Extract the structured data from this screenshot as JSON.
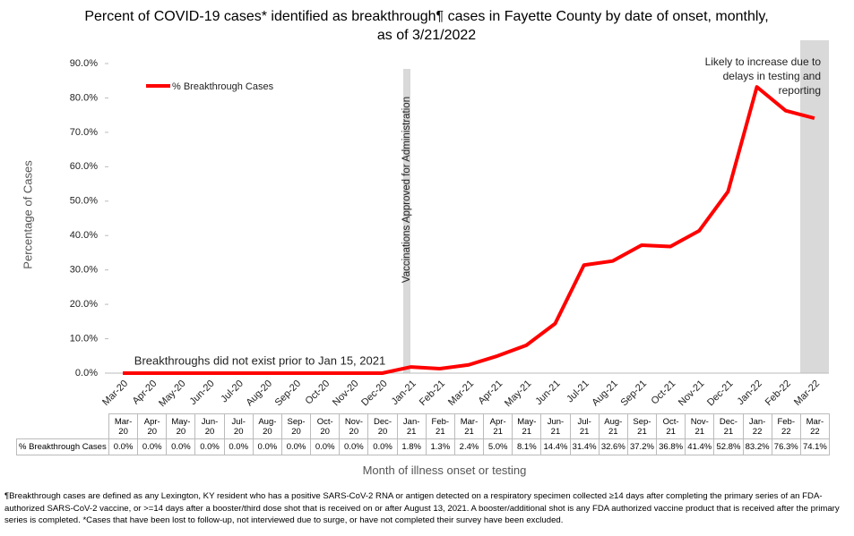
{
  "chart_data": {
    "type": "line",
    "title": "Percent of COVID-19 cases* identified as breakthrough¶ cases in Fayette County by date of onset, monthly, as of 3/21/2022",
    "categories": [
      "Mar-20",
      "Apr-20",
      "May-20",
      "Jun-20",
      "Jul-20",
      "Aug-20",
      "Sep-20",
      "Oct-20",
      "Nov-20",
      "Dec-20",
      "Jan-21",
      "Feb-21",
      "Mar-21",
      "Apr-21",
      "May-21",
      "Jun-21",
      "Jul-21",
      "Aug-21",
      "Sep-21",
      "Oct-21",
      "Nov-21",
      "Dec-21",
      "Jan-22",
      "Feb-22",
      "Mar-22"
    ],
    "series": [
      {
        "name": "% Breakthrough Cases",
        "color": "#ff0000",
        "values": [
          0,
          0,
          0,
          0,
          0,
          0,
          0,
          0,
          0,
          0,
          1.8,
          1.3,
          2.4,
          5.0,
          8.1,
          14.4,
          31.4,
          32.6,
          37.2,
          36.8,
          41.4,
          52.8,
          83.2,
          76.3,
          74.1
        ],
        "value_labels": [
          "0.0%",
          "0.0%",
          "0.0%",
          "0.0%",
          "0.0%",
          "0.0%",
          "0.0%",
          "0.0%",
          "0.0%",
          "0.0%",
          "1.8%",
          "1.3%",
          "2.4%",
          "5.0%",
          "8.1%",
          "14.4%",
          "31.4%",
          "32.6%",
          "37.2%",
          "36.8%",
          "41.4%",
          "52.8%",
          "83.2%",
          "76.3%",
          "74.1%"
        ]
      }
    ],
    "ylim": [
      0,
      90
    ],
    "yticks": [
      {
        "value": 0,
        "label": "0.0%"
      },
      {
        "value": 10,
        "label": "10.0%"
      },
      {
        "value": 20,
        "label": "20.0%"
      },
      {
        "value": 30,
        "label": "30.0%"
      },
      {
        "value": 40,
        "label": "40.0%"
      },
      {
        "value": 50,
        "label": "50.0%"
      },
      {
        "value": 60,
        "label": "60.0%"
      },
      {
        "value": 70,
        "label": "70.0%"
      },
      {
        "value": 80,
        "label": "80.0%"
      },
      {
        "value": 90,
        "label": "90.0%"
      }
    ],
    "y_label": "Percentage of Cases",
    "x_label": "Month of illness onset or testing",
    "legend": "upper left",
    "annotations": [
      "Breakthroughs did not exist prior to Jan 15, 2021",
      "Vaccinations Approved for Administration",
      "Likely to increase due to delays in testing and reporting"
    ],
    "footnote": "¶Breakthrough cases are defined as any Lexington, KY resident who has a positive SARS-CoV-2 RNA or antigen detected on a respiratory specimen collected ≥14 days after completing the primary series of an FDA-authorized SARS-CoV-2 vaccine, or >=14 days after a booster/third dose shot that is received on or after August 13, 2021.  A booster/additional shot is any FDA authorized vaccine product that is received after the primary series is completed. *Cases that have been lost to follow-up, not interviewed due to surge, or have not completed their survey have been excluded."
  }
}
